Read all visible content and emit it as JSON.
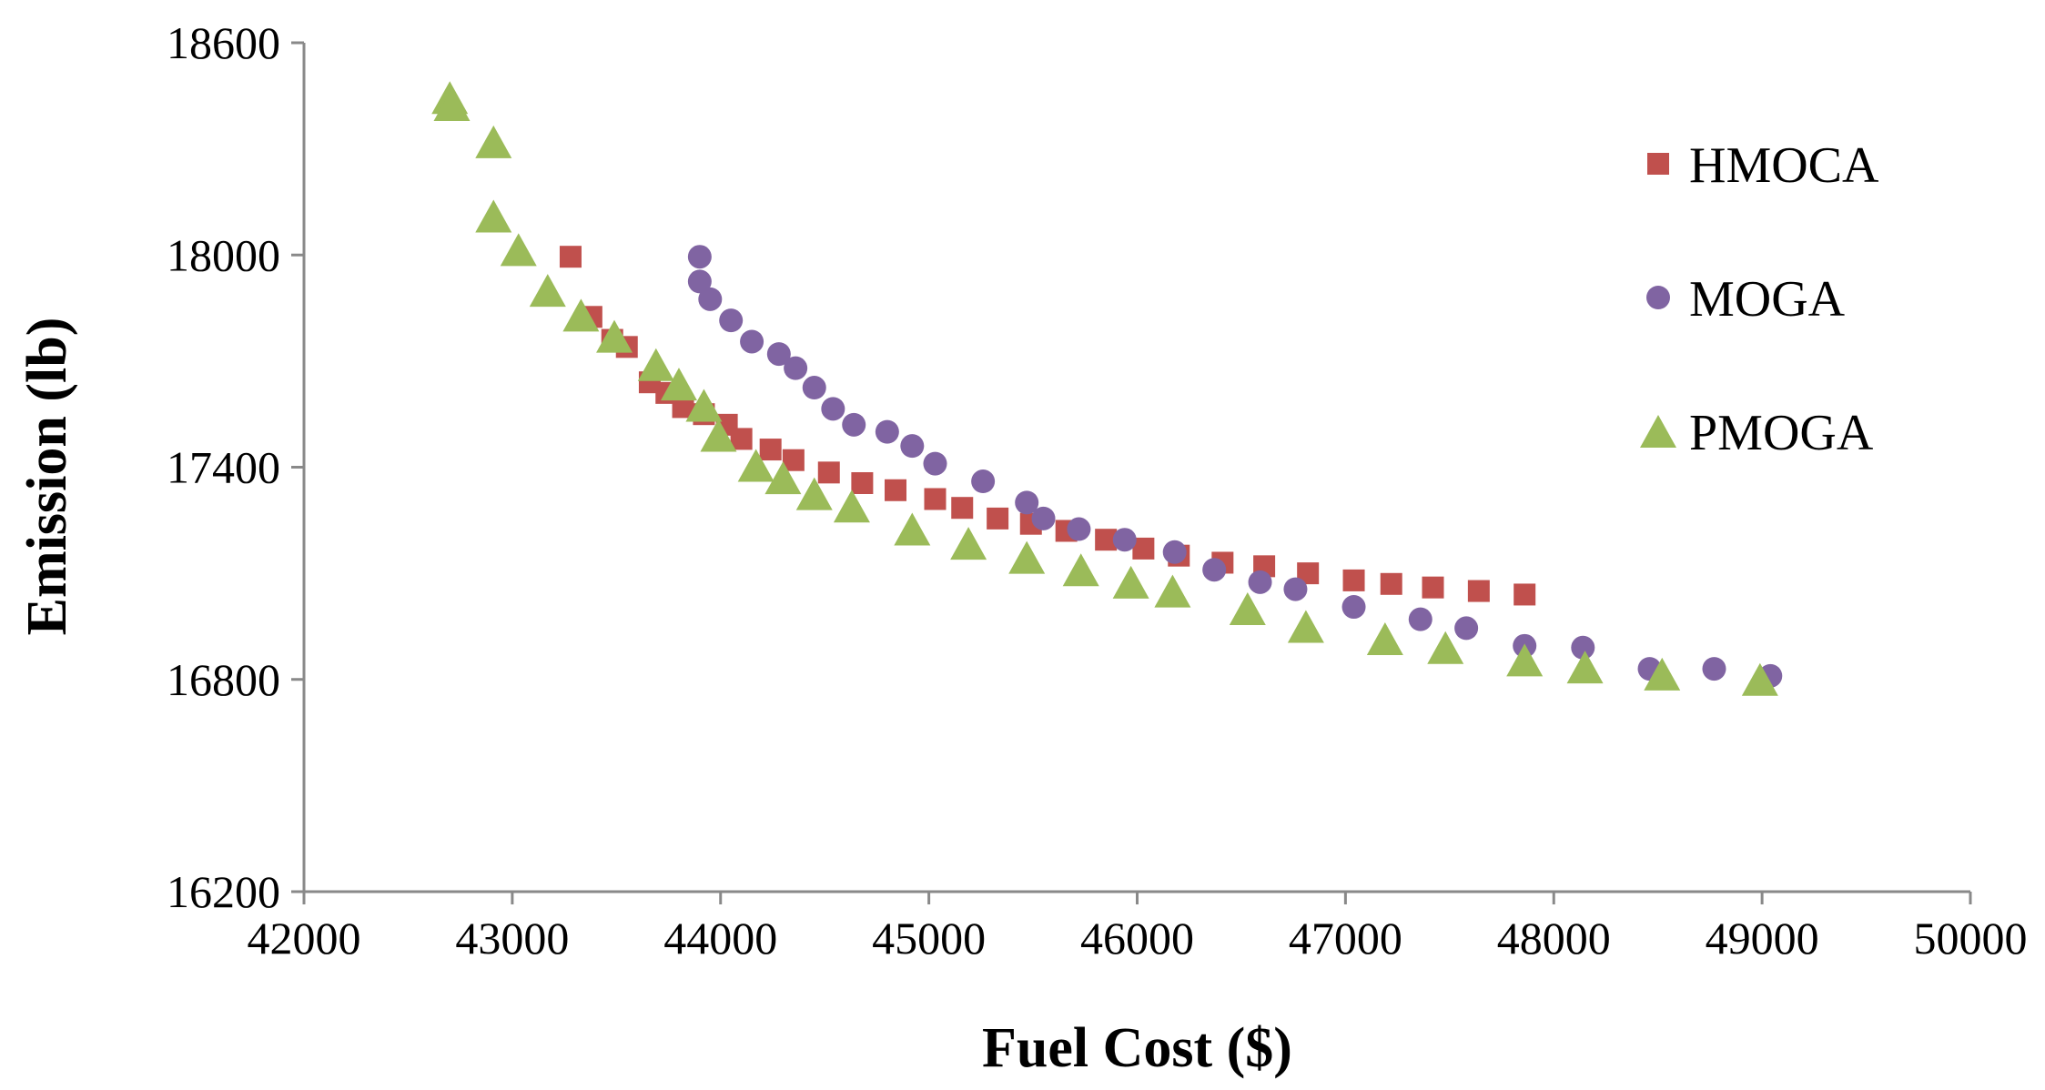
{
  "chart_data": {
    "type": "scatter",
    "title": "",
    "xlabel": "Fuel Cost ($)",
    "ylabel": "Emission (lb)",
    "xlim": [
      42000,
      50000
    ],
    "ylim": [
      16200,
      18600
    ],
    "xticks": [
      42000,
      43000,
      44000,
      45000,
      46000,
      47000,
      48000,
      49000,
      50000
    ],
    "yticks": [
      16200,
      16800,
      17400,
      18000,
      18600
    ],
    "xtick_labels": [
      "42000",
      "43000",
      "44000",
      "45000",
      "46000",
      "47000",
      "48000",
      "49000",
      "50000"
    ],
    "ytick_labels": [
      "16200",
      "16800",
      "17400",
      "18000",
      "18600"
    ],
    "grid": false,
    "legend_position": "right",
    "series": [
      {
        "name": "HMOCA",
        "marker": "square",
        "color": "#c0504d",
        "points": [
          [
            43280,
            17995
          ],
          [
            43380,
            17825
          ],
          [
            43480,
            17760
          ],
          [
            43550,
            17740
          ],
          [
            43660,
            17640
          ],
          [
            43740,
            17610
          ],
          [
            43820,
            17570
          ],
          [
            43920,
            17550
          ],
          [
            44030,
            17520
          ],
          [
            44100,
            17480
          ],
          [
            44240,
            17450
          ],
          [
            44350,
            17420
          ],
          [
            44520,
            17385
          ],
          [
            44680,
            17355
          ],
          [
            44840,
            17335
          ],
          [
            45030,
            17310
          ],
          [
            45160,
            17285
          ],
          [
            45330,
            17255
          ],
          [
            45490,
            17240
          ],
          [
            45660,
            17220
          ],
          [
            45850,
            17195
          ],
          [
            46030,
            17170
          ],
          [
            46200,
            17150
          ],
          [
            46410,
            17130
          ],
          [
            46610,
            17120
          ],
          [
            46820,
            17100
          ],
          [
            47040,
            17080
          ],
          [
            47220,
            17070
          ],
          [
            47420,
            17060
          ],
          [
            47640,
            17050
          ],
          [
            47860,
            17040
          ]
        ]
      },
      {
        "name": "MOGA",
        "marker": "circle",
        "color": "#8064a2",
        "points": [
          [
            43900,
            17995
          ],
          [
            43900,
            17925
          ],
          [
            43950,
            17875
          ],
          [
            44050,
            17815
          ],
          [
            44150,
            17755
          ],
          [
            44280,
            17720
          ],
          [
            44360,
            17680
          ],
          [
            44450,
            17625
          ],
          [
            44540,
            17565
          ],
          [
            44640,
            17520
          ],
          [
            44800,
            17500
          ],
          [
            44920,
            17460
          ],
          [
            45030,
            17410
          ],
          [
            45260,
            17360
          ],
          [
            45470,
            17300
          ],
          [
            45550,
            17255
          ],
          [
            45720,
            17225
          ],
          [
            45940,
            17195
          ],
          [
            46180,
            17160
          ],
          [
            46370,
            17110
          ],
          [
            46590,
            17075
          ],
          [
            46760,
            17055
          ],
          [
            47040,
            17005
          ],
          [
            47360,
            16970
          ],
          [
            47580,
            16945
          ],
          [
            47860,
            16895
          ],
          [
            48140,
            16890
          ],
          [
            48460,
            16830
          ],
          [
            48770,
            16830
          ],
          [
            49040,
            16810
          ]
        ]
      },
      {
        "name": "PMOGA",
        "marker": "triangle",
        "color": "#9bbb59",
        "points": [
          [
            42700,
            18445
          ],
          [
            42710,
            18425
          ],
          [
            42910,
            18320
          ],
          [
            42910,
            18110
          ],
          [
            43030,
            18015
          ],
          [
            43170,
            17900
          ],
          [
            43330,
            17830
          ],
          [
            43490,
            17770
          ],
          [
            43690,
            17690
          ],
          [
            43800,
            17635
          ],
          [
            43920,
            17575
          ],
          [
            43990,
            17490
          ],
          [
            44170,
            17405
          ],
          [
            44300,
            17370
          ],
          [
            44450,
            17325
          ],
          [
            44630,
            17290
          ],
          [
            44920,
            17225
          ],
          [
            45190,
            17185
          ],
          [
            45470,
            17145
          ],
          [
            45730,
            17110
          ],
          [
            45970,
            17075
          ],
          [
            46170,
            17050
          ],
          [
            46530,
            17000
          ],
          [
            46810,
            16950
          ],
          [
            47190,
            16915
          ],
          [
            47480,
            16890
          ],
          [
            47860,
            16855
          ],
          [
            48150,
            16835
          ],
          [
            48520,
            16815
          ],
          [
            48990,
            16800
          ]
        ]
      }
    ]
  },
  "legend": {
    "items": [
      {
        "label": "HMOCA",
        "marker": "square",
        "color": "#c0504d"
      },
      {
        "label": "MOGA",
        "marker": "circle",
        "color": "#8064a2"
      },
      {
        "label": "PMOGA",
        "marker": "triangle",
        "color": "#9bbb59"
      }
    ]
  },
  "axis_color": "#898989"
}
